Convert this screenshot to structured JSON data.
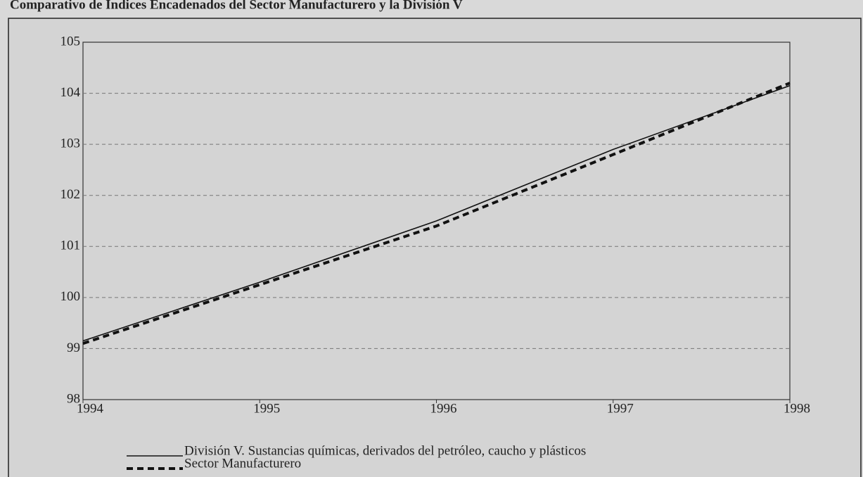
{
  "chart_data": {
    "type": "line",
    "title": "Comparativo de Índices Encadenados del Sector Manufacturero y la División V",
    "x": [
      1994,
      1995,
      1996,
      1997,
      1998
    ],
    "series": [
      {
        "name": "División V. Sustancias químicas, derivados del petróleo, caucho y plásticos",
        "color": "#111111",
        "dash": false,
        "values": [
          99.15,
          100.3,
          101.5,
          102.9,
          104.15
        ]
      },
      {
        "name": "Sector Manufacturero",
        "color": "#111111",
        "dash": true,
        "values": [
          99.1,
          100.25,
          101.4,
          102.8,
          104.2
        ]
      }
    ],
    "xlim": [
      1994,
      1998
    ],
    "xticks": [
      1994,
      1995,
      1996,
      1997,
      1998
    ],
    "ylim": [
      98,
      105
    ],
    "yticks": [
      98,
      99,
      100,
      101,
      102,
      103,
      104,
      105
    ],
    "grid": true
  }
}
